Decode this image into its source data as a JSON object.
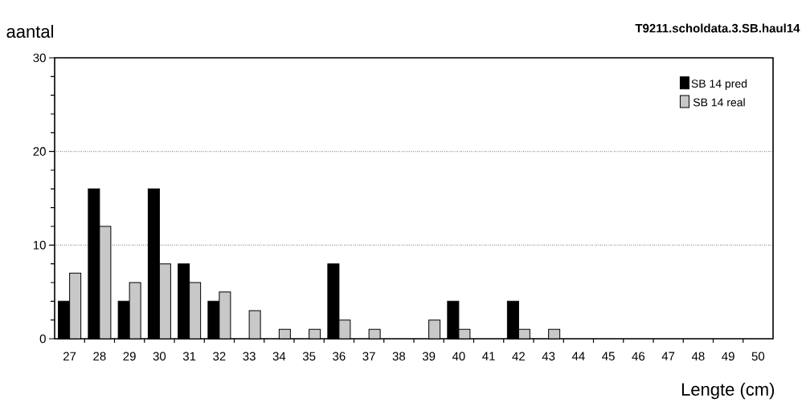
{
  "chart_data": {
    "type": "bar",
    "title": "T9211.scholdata.3.SB.haul14",
    "xlabel": "Lengte (cm)",
    "ylabel": "aantal",
    "categories": [
      "27",
      "28",
      "29",
      "30",
      "31",
      "32",
      "33",
      "34",
      "35",
      "36",
      "37",
      "38",
      "39",
      "40",
      "41",
      "42",
      "43",
      "44",
      "45",
      "46",
      "47",
      "48",
      "49",
      "50"
    ],
    "series": [
      {
        "name": "SB 14 pred",
        "color": "#000000",
        "values": [
          4,
          16,
          4,
          16,
          8,
          4,
          0,
          0,
          0,
          8,
          0,
          0,
          0,
          4,
          0,
          4,
          0,
          0,
          0,
          0,
          0,
          0,
          0,
          0
        ]
      },
      {
        "name": "SB 14 real",
        "color": "#c8c8c8",
        "values": [
          7,
          12,
          6,
          8,
          6,
          5,
          3,
          1,
          1,
          2,
          1,
          0,
          2,
          1,
          0,
          1,
          1,
          0,
          0,
          0,
          0,
          0,
          0,
          0
        ]
      }
    ],
    "ylim": [
      0,
      30
    ],
    "yticks": [
      0,
      10,
      20,
      30
    ],
    "grid": "y",
    "legend": "top right"
  }
}
